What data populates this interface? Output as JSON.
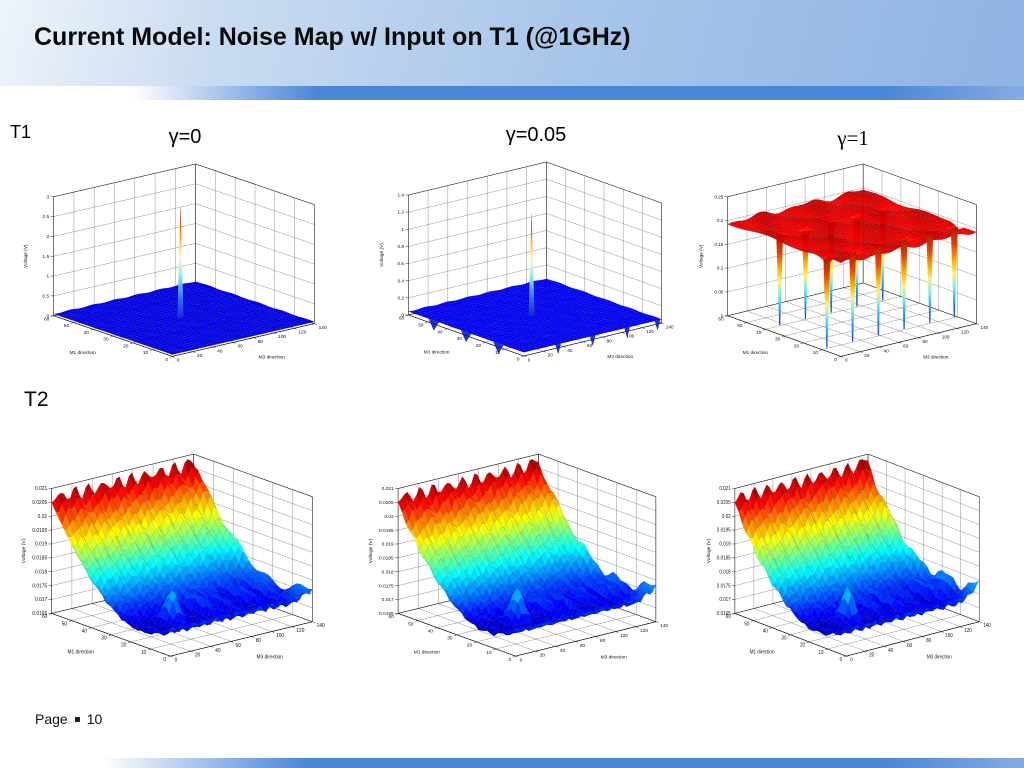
{
  "slide": {
    "title": "Current Model: Noise Map w/ Input on T1 (@1GHz)",
    "row_labels": [
      "T1",
      "T2"
    ],
    "footer": {
      "label": "Page",
      "number": "10"
    },
    "colors": {
      "header_blue": "#a9c6ea",
      "stripe_blue": "#4a86d6",
      "title_text": "#0a0a0a",
      "surface_low": "#0000ee",
      "surface_high": "#cc1100"
    }
  },
  "chart_data": [
    {
      "type": "surface",
      "panel": "T1",
      "gamma": "0",
      "title": "γ=0",
      "xlabel": "M3 direction",
      "ylabel": "M1 direction",
      "zlabel": "Voltage (V)",
      "xlim": [
        0,
        140
      ],
      "ylim": [
        0,
        60
      ],
      "zlim": [
        0,
        3
      ],
      "x_ticks": [
        "0",
        "20",
        "40",
        "60",
        "80",
        "100",
        "120",
        "140"
      ],
      "y_ticks": [
        "0",
        "10",
        "20",
        "30",
        "40",
        "50",
        "60"
      ],
      "z_ticks": [
        "0",
        "0.5",
        "1",
        "1.5",
        "2",
        "2.5",
        "3"
      ],
      "colormap": "jet",
      "grid": true,
      "summary": "Noise voltage ~0 V over the whole plane with one sharp peak of ~3 V at the input location (M3~65, M1~30).",
      "shape": {
        "kind": "flat-peak",
        "base": 0.015,
        "peak": 0.97,
        "pu": 0.475,
        "pv": 0.5,
        "notches_x": [],
        "notches_y": []
      }
    },
    {
      "type": "surface",
      "panel": "T1",
      "gamma": "0.05",
      "title": "γ=0.05",
      "xlabel": "M3 direction",
      "ylabel": "M1 direction",
      "zlabel": "Voltage (V)",
      "xlim": [
        0,
        140
      ],
      "ylim": [
        0,
        60
      ],
      "zlim": [
        0,
        1.4
      ],
      "x_ticks": [
        "0",
        "20",
        "40",
        "60",
        "80",
        "100",
        "120",
        "140"
      ],
      "y_ticks": [
        "0",
        "10",
        "20",
        "30",
        "40",
        "50",
        "60"
      ],
      "z_ticks": [
        "0",
        "0.2",
        "0.4",
        "0.6",
        "0.8",
        "1",
        "1.2",
        "1.4"
      ],
      "colormap": "jet",
      "grid": true,
      "summary": "Flat ~0 V floor with a sharp central peak of ~1.3 V (M3~65, M1~30) and small periodic dips along the front edges.",
      "shape": {
        "kind": "flat-peak",
        "base": 0.03,
        "peak": 0.9,
        "pu": 0.475,
        "pv": 0.5,
        "notches_x": [
          0.25,
          0.5,
          0.75,
          0.97
        ],
        "notches_y": [
          0.22,
          0.5,
          0.78
        ]
      }
    },
    {
      "type": "surface",
      "panel": "T1",
      "gamma": "1",
      "title": "γ=1",
      "xlabel": "M3 direction",
      "ylabel": "M1 direction",
      "zlabel": "Voltage (V)",
      "xlim": [
        0,
        140
      ],
      "ylim": [
        0,
        60
      ],
      "zlim": [
        0,
        0.25
      ],
      "x_ticks": [
        "0",
        "20",
        "40",
        "60",
        "80",
        "100",
        "120",
        "140"
      ],
      "y_ticks": [
        "0",
        "10",
        "20",
        "30",
        "40",
        "50",
        "60"
      ],
      "z_ticks": [
        "0",
        "0.05",
        "0.1",
        "0.15",
        "0.2",
        "0.25"
      ],
      "colormap": "jet",
      "grid": true,
      "summary": "Uniform red plateau at ~0.2 V with deep periodic nulls dropping to 0 V on a regular grid of locations.",
      "shape": {
        "kind": "plateau-funnels",
        "level": 0.78,
        "v_back": 0.66,
        "v_front": 0.16,
        "funnels_back": [
          0.1,
          0.29,
          0.48,
          0.67,
          0.86
        ],
        "funnels_front": [
          0.03,
          0.22,
          0.41,
          0.6,
          0.79,
          0.97
        ]
      }
    },
    {
      "type": "surface",
      "panel": "T2",
      "gamma": "0",
      "title": "",
      "xlabel": "M3 direction",
      "ylabel": "M1 direction",
      "zlabel": "Voltage (V)",
      "xlim": [
        0,
        140
      ],
      "ylim": [
        0,
        60
      ],
      "zlim": [
        0.0165,
        0.021
      ],
      "x_ticks": [
        "0",
        "20",
        "40",
        "60",
        "80",
        "100",
        "120",
        "140"
      ],
      "y_ticks": [
        "0",
        "10",
        "20",
        "30",
        "40",
        "50",
        "60"
      ],
      "z_ticks": [
        "0.0165",
        "0.017",
        "0.0175",
        "0.018",
        "0.0185",
        "0.019",
        "0.0195",
        "0.02",
        "0.0205",
        "0.021"
      ],
      "colormap": "jet",
      "grid": true,
      "summary": "Rippled noise surface from 0.0165 V to 0.021 V: high ridge ~0.021 V along M1=60 descending to a blue valley ~0.0165 V near the front, with periodic bumps and a raised right edge.",
      "shape": {
        "kind": "valley-ridge",
        "phase": 0
      }
    },
    {
      "type": "surface",
      "panel": "T2",
      "gamma": "0.05",
      "title": "",
      "xlabel": "M3 direction",
      "ylabel": "M1 direction",
      "zlabel": "Voltage (V)",
      "xlim": [
        0,
        140
      ],
      "ylim": [
        0,
        60
      ],
      "zlim": [
        0.0165,
        0.021
      ],
      "x_ticks": [
        "0",
        "20",
        "40",
        "60",
        "80",
        "100",
        "120",
        "140"
      ],
      "y_ticks": [
        "0",
        "10",
        "20",
        "30",
        "40",
        "50",
        "60"
      ],
      "z_ticks": [
        "0.0165",
        "0.017",
        "0.0175",
        "0.018",
        "0.0185",
        "0.019",
        "0.0195",
        "0.02",
        "0.0205",
        "0.021"
      ],
      "colormap": "jet",
      "grid": true,
      "summary": "Nearly identical rippled surface (0.0165-0.021 V): red ridge along M1=60, blue valley toward the front, periodic bumps.",
      "shape": {
        "kind": "valley-ridge",
        "phase": 0.5
      }
    },
    {
      "type": "surface",
      "panel": "T2",
      "gamma": "1",
      "title": "",
      "xlabel": "M3 direction",
      "ylabel": "M1 direction",
      "zlabel": "Voltage (V)",
      "xlim": [
        0,
        140
      ],
      "ylim": [
        0,
        60
      ],
      "zlim": [
        0.0165,
        0.021
      ],
      "x_ticks": [
        "0",
        "20",
        "40",
        "60",
        "80",
        "100",
        "120",
        "140"
      ],
      "y_ticks": [
        "0",
        "10",
        "20",
        "30",
        "40",
        "50",
        "60"
      ],
      "z_ticks": [
        "0.0165",
        "0.017",
        "0.0175",
        "0.018",
        "0.0185",
        "0.019",
        "0.0195",
        "0.02",
        "0.0205",
        "0.021"
      ],
      "colormap": "jet",
      "grid": true,
      "summary": "Nearly identical rippled surface (0.0165-0.021 V): red ridge along M1=60, blue valley toward the front, periodic bumps.",
      "shape": {
        "kind": "valley-ridge",
        "phase": 1.0
      }
    }
  ]
}
